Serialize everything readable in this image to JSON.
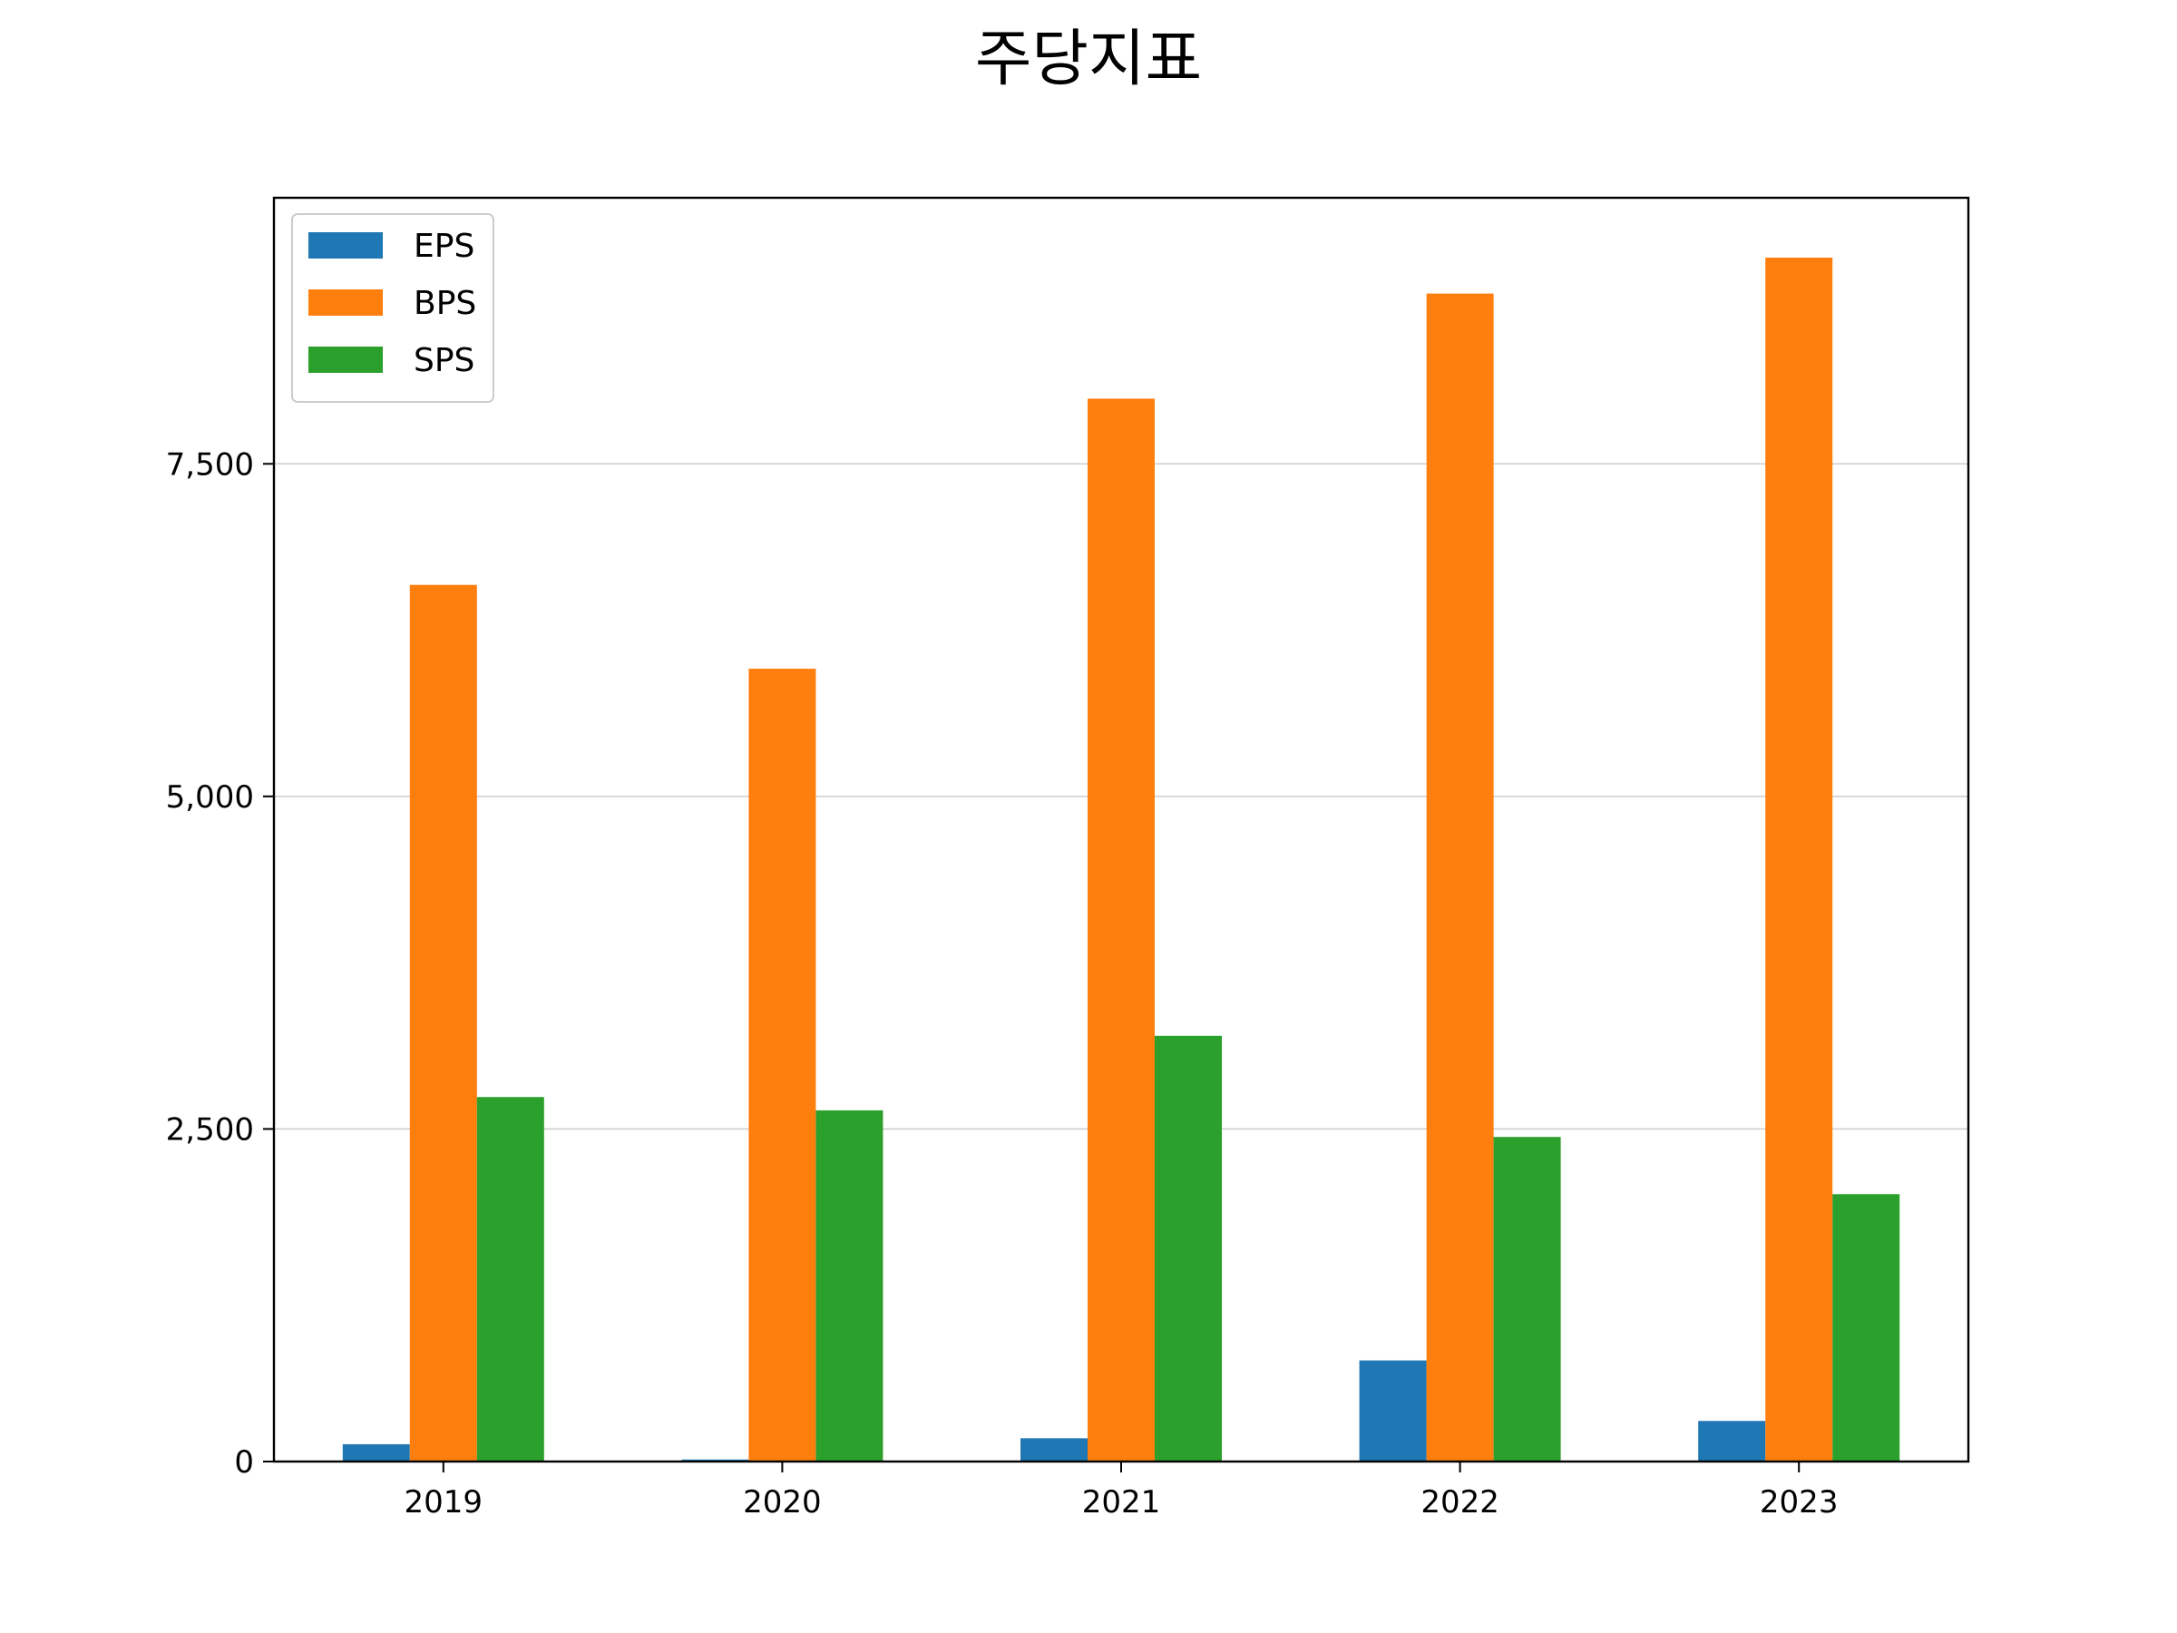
{
  "chart_data": {
    "type": "bar",
    "title": "주당지표",
    "xlabel": "",
    "ylabel": "",
    "categories": [
      "2019",
      "2020",
      "2021",
      "2022",
      "2023"
    ],
    "series": [
      {
        "name": "EPS",
        "color": "#1f77b4",
        "values": [
          130,
          15,
          175,
          760,
          305
        ]
      },
      {
        "name": "BPS",
        "color": "#ff7f0e",
        "values": [
          6590,
          5960,
          7990,
          8780,
          9050
        ]
      },
      {
        "name": "SPS",
        "color": "#2ca02c",
        "values": [
          2740,
          2640,
          3200,
          2440,
          2010
        ]
      }
    ],
    "ylim": [
      0,
      9500
    ],
    "yticks": [
      0,
      2500,
      5000,
      7500
    ],
    "ytick_labels": [
      "0",
      "2,500",
      "5,000",
      "7,500"
    ],
    "grid": "horizontal",
    "legend_position": "top-left"
  }
}
